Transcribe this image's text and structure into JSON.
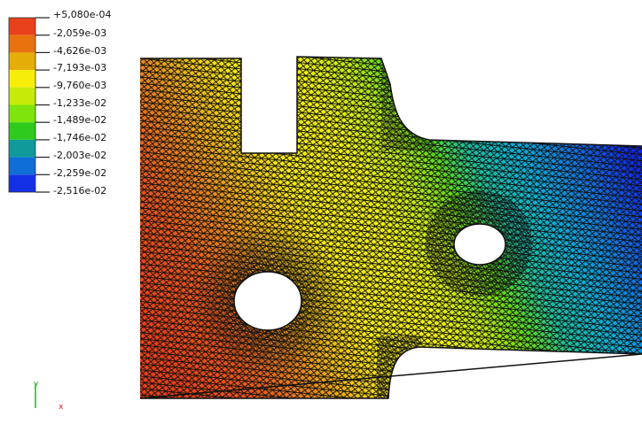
{
  "legend": {
    "labels": [
      "+5,080e-04",
      "-2,059e-03",
      "-4,626e-03",
      "-7,193e-03",
      "-9,760e-03",
      "-1,233e-02",
      "-1,489e-02",
      "-1,746e-02",
      "-2,003e-02",
      "-2,259e-02",
      "-2,516e-02"
    ],
    "colors": [
      "#e8401a",
      "#e8720e",
      "#e4ad08",
      "#f6ee08",
      "#c8ea08",
      "#7ee40c",
      "#2ecb1c",
      "#109a9a",
      "#0f6ed8",
      "#1430e6"
    ]
  },
  "triad": {
    "y_label": "y",
    "x_label": "x",
    "y_color": "#18b818",
    "x_color": "#e01818"
  }
}
